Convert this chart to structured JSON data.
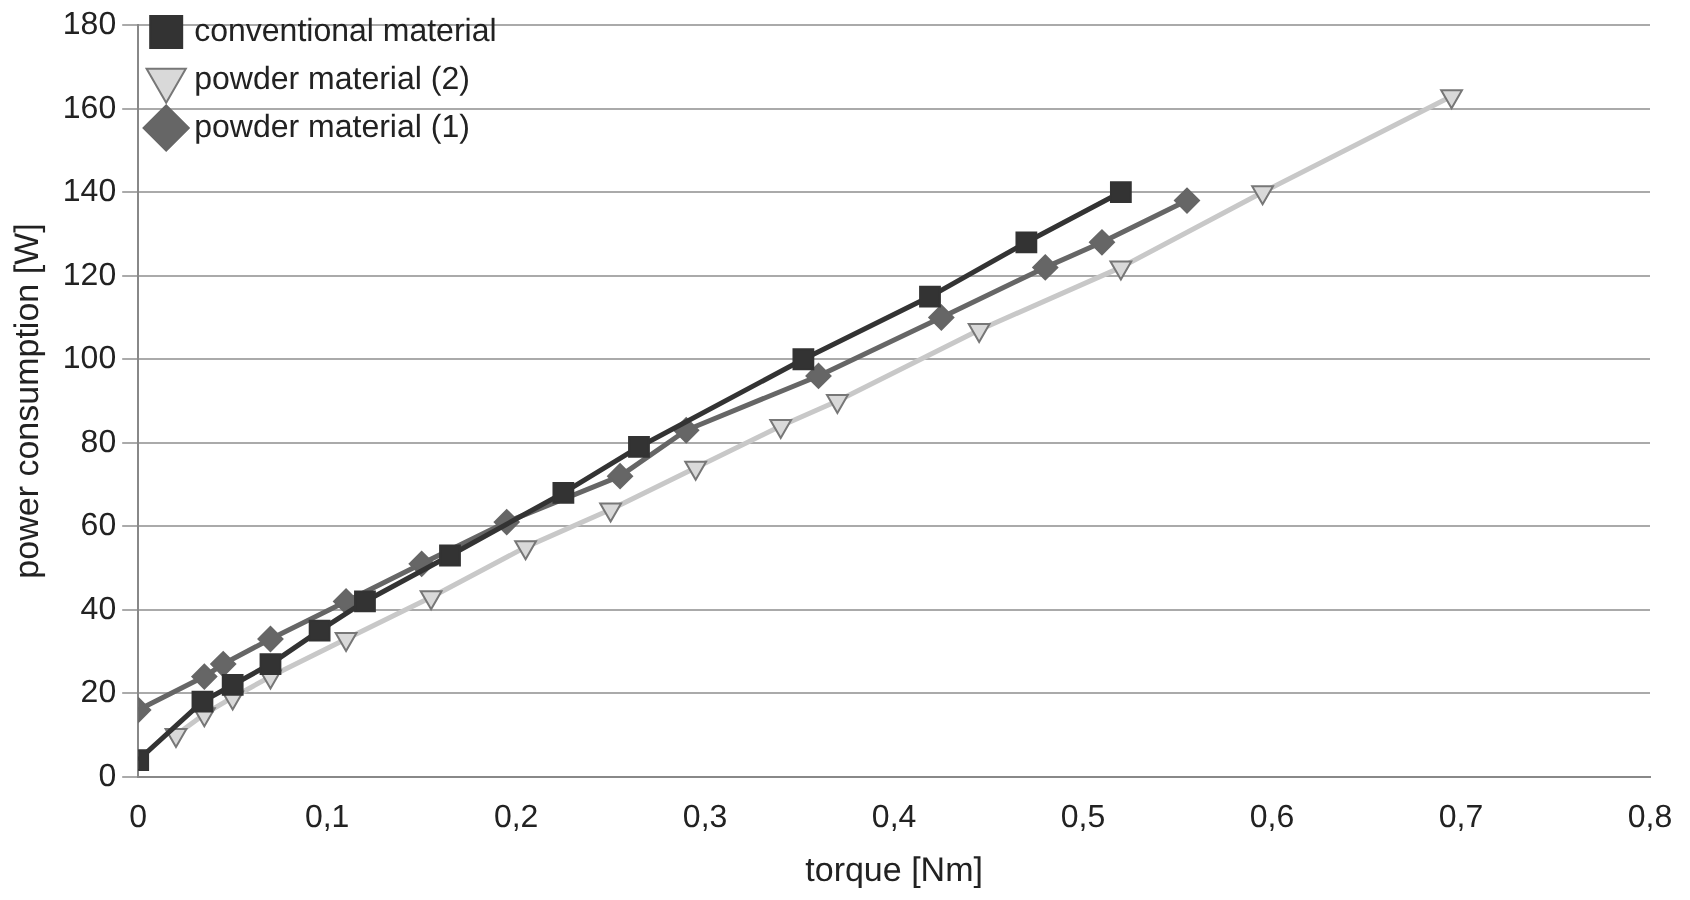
{
  "chart_data": {
    "type": "line",
    "xlabel": "torque [Nm]",
    "ylabel": "power consumption [W]",
    "xlim": [
      0,
      0.8
    ],
    "xticks": [
      0,
      {
        "value": 0.1,
        "label": "0,1"
      },
      {
        "value": 0.2,
        "label": "0,2"
      },
      {
        "value": 0.3,
        "label": "0,3"
      },
      {
        "value": 0.4,
        "label": "0,4"
      },
      {
        "value": 0.5,
        "label": "0,5"
      },
      {
        "value": 0.6,
        "label": "0,6"
      },
      {
        "value": 0.7,
        "label": "0,7"
      },
      {
        "value": 0.8,
        "label": "0,8"
      }
    ],
    "ylim": [
      0,
      180
    ],
    "yticks": [
      0,
      20,
      40,
      60,
      80,
      100,
      120,
      140,
      160,
      180
    ],
    "grid": "y",
    "legend": "top left",
    "line_style": "solid",
    "series": [
      {
        "name": "conventional material",
        "color": "#333333",
        "marker": "square",
        "x": [
          0,
          0.034,
          0.05,
          0.07,
          0.096,
          0.12,
          0.165,
          0.225,
          0.265,
          0.352,
          0.419,
          0.47,
          0.52
        ],
        "values": [
          4,
          18,
          22,
          27,
          35,
          42,
          53,
          68,
          79,
          100,
          115,
          128,
          140
        ]
      },
      {
        "name": "powder material (2)",
        "color": "#c8c8c8",
        "marker": "triangle",
        "x": [
          0.02,
          0.035,
          0.05,
          0.07,
          0.11,
          0.155,
          0.205,
          0.25,
          0.295,
          0.34,
          0.37,
          0.445,
          0.52,
          0.595,
          0.695
        ],
        "values": [
          10,
          15,
          19,
          24,
          33,
          43,
          55,
          64,
          74,
          84,
          90,
          107,
          122,
          140,
          163
        ]
      },
      {
        "name": "powder material (1)",
        "color": "#666666",
        "marker": "diamond",
        "x": [
          0,
          0.035,
          0.045,
          0.07,
          0.11,
          0.15,
          0.195,
          0.255,
          0.29,
          0.36,
          0.425,
          0.48,
          0.51,
          0.555
        ],
        "values": [
          16,
          24,
          27,
          33,
          42,
          51,
          61,
          72,
          83,
          96,
          110,
          122,
          128,
          138
        ]
      }
    ]
  }
}
